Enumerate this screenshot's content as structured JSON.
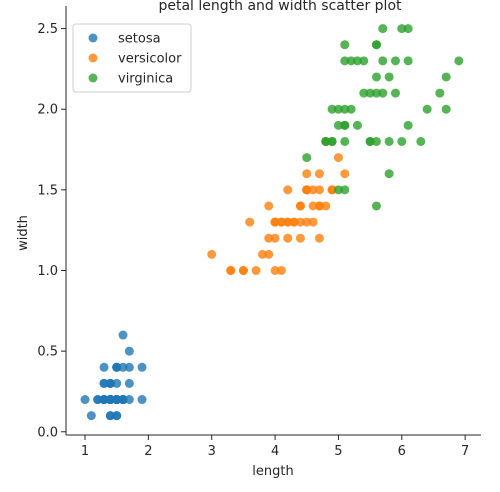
{
  "chart_data": {
    "type": "scatter",
    "title": "petal length and width scatter plot",
    "xlabel": "length",
    "ylabel": "width",
    "xlim": [
      0.7,
      7.25
    ],
    "ylim": [
      -0.02,
      2.64
    ],
    "xticks": [
      1,
      2,
      3,
      4,
      5,
      6,
      7
    ],
    "yticks": [
      0.0,
      0.5,
      1.0,
      1.5,
      2.0,
      2.5
    ],
    "grid": false,
    "legend_position": "top-left",
    "series": [
      {
        "name": "setosa",
        "color": "#1f77b4",
        "points": [
          [
            1.4,
            0.2
          ],
          [
            1.4,
            0.2
          ],
          [
            1.3,
            0.2
          ],
          [
            1.5,
            0.2
          ],
          [
            1.4,
            0.2
          ],
          [
            1.7,
            0.4
          ],
          [
            1.4,
            0.3
          ],
          [
            1.5,
            0.2
          ],
          [
            1.4,
            0.2
          ],
          [
            1.5,
            0.1
          ],
          [
            1.5,
            0.2
          ],
          [
            1.6,
            0.2
          ],
          [
            1.4,
            0.1
          ],
          [
            1.1,
            0.1
          ],
          [
            1.2,
            0.2
          ],
          [
            1.5,
            0.4
          ],
          [
            1.3,
            0.4
          ],
          [
            1.4,
            0.3
          ],
          [
            1.7,
            0.3
          ],
          [
            1.5,
            0.3
          ],
          [
            1.7,
            0.2
          ],
          [
            1.5,
            0.4
          ],
          [
            1.0,
            0.2
          ],
          [
            1.7,
            0.5
          ],
          [
            1.9,
            0.2
          ],
          [
            1.6,
            0.2
          ],
          [
            1.6,
            0.4
          ],
          [
            1.5,
            0.2
          ],
          [
            1.4,
            0.2
          ],
          [
            1.6,
            0.2
          ],
          [
            1.6,
            0.2
          ],
          [
            1.5,
            0.4
          ],
          [
            1.5,
            0.1
          ],
          [
            1.4,
            0.2
          ],
          [
            1.5,
            0.2
          ],
          [
            1.2,
            0.2
          ],
          [
            1.3,
            0.2
          ],
          [
            1.4,
            0.1
          ],
          [
            1.3,
            0.2
          ],
          [
            1.5,
            0.2
          ],
          [
            1.3,
            0.3
          ],
          [
            1.3,
            0.3
          ],
          [
            1.3,
            0.2
          ],
          [
            1.6,
            0.6
          ],
          [
            1.9,
            0.4
          ],
          [
            1.4,
            0.3
          ],
          [
            1.6,
            0.2
          ],
          [
            1.4,
            0.2
          ],
          [
            1.5,
            0.2
          ],
          [
            1.4,
            0.2
          ]
        ]
      },
      {
        "name": "versicolor",
        "color": "#ff7f0e",
        "points": [
          [
            4.7,
            1.4
          ],
          [
            4.5,
            1.5
          ],
          [
            4.9,
            1.5
          ],
          [
            4.0,
            1.3
          ],
          [
            4.6,
            1.5
          ],
          [
            4.5,
            1.3
          ],
          [
            4.7,
            1.6
          ],
          [
            3.3,
            1.0
          ],
          [
            4.6,
            1.3
          ],
          [
            3.9,
            1.4
          ],
          [
            3.5,
            1.0
          ],
          [
            4.2,
            1.5
          ],
          [
            4.0,
            1.0
          ],
          [
            4.7,
            1.4
          ],
          [
            3.6,
            1.3
          ],
          [
            4.4,
            1.4
          ],
          [
            4.5,
            1.5
          ],
          [
            4.1,
            1.0
          ],
          [
            4.5,
            1.5
          ],
          [
            3.9,
            1.1
          ],
          [
            4.8,
            1.8
          ],
          [
            4.0,
            1.3
          ],
          [
            4.9,
            1.5
          ],
          [
            4.7,
            1.2
          ],
          [
            4.3,
            1.3
          ],
          [
            4.4,
            1.4
          ],
          [
            4.8,
            1.4
          ],
          [
            5.0,
            1.7
          ],
          [
            4.5,
            1.5
          ],
          [
            3.5,
            1.0
          ],
          [
            3.8,
            1.1
          ],
          [
            3.7,
            1.0
          ],
          [
            3.9,
            1.2
          ],
          [
            5.1,
            1.6
          ],
          [
            4.5,
            1.5
          ],
          [
            4.5,
            1.6
          ],
          [
            4.7,
            1.5
          ],
          [
            4.4,
            1.3
          ],
          [
            4.1,
            1.3
          ],
          [
            4.0,
            1.3
          ],
          [
            4.4,
            1.2
          ],
          [
            4.6,
            1.4
          ],
          [
            4.0,
            1.2
          ],
          [
            3.3,
            1.0
          ],
          [
            4.2,
            1.3
          ],
          [
            4.2,
            1.2
          ],
          [
            4.2,
            1.3
          ],
          [
            4.3,
            1.3
          ],
          [
            3.0,
            1.1
          ],
          [
            4.1,
            1.3
          ]
        ]
      },
      {
        "name": "virginica",
        "color": "#2ca02c",
        "points": [
          [
            6.0,
            2.5
          ],
          [
            5.1,
            1.9
          ],
          [
            5.9,
            2.1
          ],
          [
            5.6,
            1.8
          ],
          [
            5.8,
            2.2
          ],
          [
            6.6,
            2.1
          ],
          [
            4.5,
            1.7
          ],
          [
            6.3,
            1.8
          ],
          [
            5.8,
            1.8
          ],
          [
            6.1,
            2.5
          ],
          [
            5.1,
            2.0
          ],
          [
            5.3,
            1.9
          ],
          [
            5.5,
            2.1
          ],
          [
            5.0,
            2.0
          ],
          [
            5.1,
            2.4
          ],
          [
            5.3,
            2.3
          ],
          [
            5.5,
            1.8
          ],
          [
            6.7,
            2.2
          ],
          [
            6.9,
            2.3
          ],
          [
            5.0,
            1.5
          ],
          [
            5.7,
            2.3
          ],
          [
            4.9,
            2.0
          ],
          [
            6.7,
            2.0
          ],
          [
            4.9,
            1.8
          ],
          [
            5.7,
            2.1
          ],
          [
            6.0,
            1.8
          ],
          [
            4.8,
            1.8
          ],
          [
            4.9,
            1.8
          ],
          [
            5.6,
            2.1
          ],
          [
            5.8,
            1.6
          ],
          [
            6.1,
            1.9
          ],
          [
            6.4,
            2.0
          ],
          [
            5.6,
            2.2
          ],
          [
            5.1,
            1.5
          ],
          [
            5.6,
            1.4
          ],
          [
            6.1,
            2.3
          ],
          [
            5.6,
            2.4
          ],
          [
            5.5,
            1.8
          ],
          [
            4.8,
            1.8
          ],
          [
            5.4,
            2.1
          ],
          [
            5.6,
            2.4
          ],
          [
            5.1,
            2.3
          ],
          [
            5.1,
            1.9
          ],
          [
            5.9,
            2.3
          ],
          [
            5.7,
            2.5
          ],
          [
            5.2,
            2.3
          ],
          [
            5.0,
            1.9
          ],
          [
            5.2,
            2.0
          ],
          [
            5.4,
            2.3
          ],
          [
            5.1,
            1.8
          ]
        ]
      }
    ]
  }
}
